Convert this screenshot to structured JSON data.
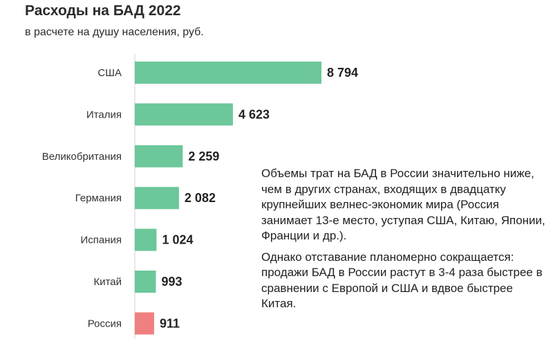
{
  "header": {
    "title": "Расходы на БАД 2022",
    "subtitle": "в расчете на душу населения, руб."
  },
  "colors": {
    "bar_default": "#6cc79a",
    "bar_highlight": "#f08080",
    "axis": "#d0d0d0"
  },
  "chart_data": {
    "type": "bar",
    "orientation": "horizontal",
    "title": "Расходы на БАД 2022",
    "subtitle": "в расчете на душу населения, руб.",
    "categories": [
      "США",
      "Италия",
      "Великобритания",
      "Германия",
      "Испания",
      "Китай",
      "Россия"
    ],
    "values": [
      8794,
      4623,
      2259,
      2082,
      1024,
      993,
      911
    ],
    "value_labels": [
      "8 794",
      "4 623",
      "2 259",
      "2 082",
      "1 024",
      "993",
      "911"
    ],
    "highlight_category": "Россия",
    "xlim": [
      0,
      8794
    ],
    "grid": false,
    "legend": "none"
  },
  "notes": {
    "paragraph1": "Объемы трат на БАД в России значительно ниже, чем в других странах, входящих в двадцатку крупнейших велнес-экономик мира (Россия занимает 13-е место, уступая США, Китаю, Японии, Франции и др.).",
    "paragraph2": "Однако отставание планомерно сокращается: продажи БАД в России растут в 3-4 раза быстрее в сравнении с Европой и США и вдвое быстрее Китая."
  }
}
